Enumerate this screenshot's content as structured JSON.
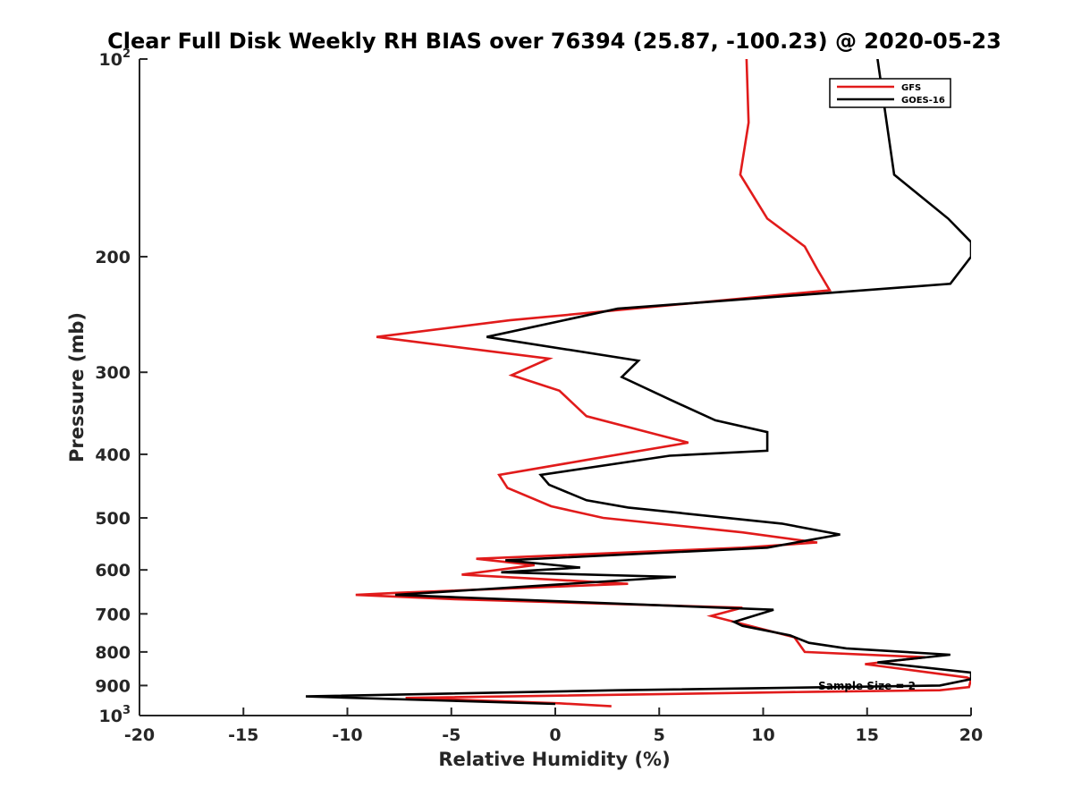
{
  "chart_data": {
    "type": "line",
    "title": "Clear Full Disk Weekly RH BIAS over 76394 (25.87, -100.23) @ 2020-05-23",
    "xlabel": "Relative Humidity (%)",
    "ylabel": "Pressure (mb)",
    "xlim": [
      -20,
      20
    ],
    "ylim": [
      100,
      1000
    ],
    "y_scale": "log",
    "y_reversed": true,
    "grid": false,
    "legend_position": "top-right",
    "x_ticks": [
      "-20",
      "-15",
      "-10",
      "-5",
      "0",
      "5",
      "10",
      "15",
      "20"
    ],
    "y_tick_labels": [
      {
        "value": 100,
        "base": "10",
        "exp": "2"
      },
      {
        "value": 200,
        "label": "200"
      },
      {
        "value": 300,
        "label": "300"
      },
      {
        "value": 400,
        "label": "400"
      },
      {
        "value": 500,
        "label": "500"
      },
      {
        "value": 600,
        "label": "600"
      },
      {
        "value": 700,
        "label": "700"
      },
      {
        "value": 800,
        "label": "800"
      },
      {
        "value": 900,
        "label": "900"
      },
      {
        "value": 1000,
        "base": "10",
        "exp": "3"
      }
    ],
    "annotation": "Sample Size = 2",
    "series": [
      {
        "name": "GFS",
        "color": "#e11b1b",
        "points": [
          [
            9.2,
            100
          ],
          [
            9.3,
            125
          ],
          [
            8.9,
            150
          ],
          [
            10.2,
            175
          ],
          [
            12.0,
            193
          ],
          [
            12.6,
            209
          ],
          [
            13.2,
            225
          ],
          [
            -2.2,
            250
          ],
          [
            -8.6,
            265
          ],
          [
            -0.3,
            286
          ],
          [
            -2.1,
            303
          ],
          [
            0.2,
            320
          ],
          [
            1.5,
            350
          ],
          [
            5.0,
            374
          ],
          [
            6.4,
            384
          ],
          [
            1.5,
            408
          ],
          [
            -2.7,
            430
          ],
          [
            -2.3,
            450
          ],
          [
            -0.2,
            480
          ],
          [
            2.3,
            500
          ],
          [
            9.0,
            526
          ],
          [
            12.6,
            545
          ],
          [
            9.0,
            555
          ],
          [
            -3.8,
            577
          ],
          [
            -1.0,
            590
          ],
          [
            -4.5,
            610
          ],
          [
            3.5,
            630
          ],
          [
            -7.5,
            650
          ],
          [
            -9.6,
            655
          ],
          [
            -4.8,
            665
          ],
          [
            9.0,
            685
          ],
          [
            7.5,
            705
          ],
          [
            11.5,
            760
          ],
          [
            12.0,
            800
          ],
          [
            17.8,
            815
          ],
          [
            14.9,
            835
          ],
          [
            19.8,
            875
          ],
          [
            20.0,
            880
          ],
          [
            19.9,
            905
          ],
          [
            18.5,
            915
          ],
          [
            12.5,
            920
          ],
          [
            -7.2,
            940
          ],
          [
            0.2,
            958
          ],
          [
            2.7,
            968
          ]
        ]
      },
      {
        "name": "GOES-16",
        "color": "#000000",
        "points": [
          [
            15.5,
            100
          ],
          [
            16.3,
            150
          ],
          [
            18.9,
            175
          ],
          [
            20.0,
            190
          ],
          [
            20.0,
            200
          ],
          [
            19.0,
            220
          ],
          [
            3.0,
            240
          ],
          [
            -3.3,
            265
          ],
          [
            4.0,
            288
          ],
          [
            3.2,
            305
          ],
          [
            5.5,
            330
          ],
          [
            7.7,
            355
          ],
          [
            10.2,
            370
          ],
          [
            10.2,
            395
          ],
          [
            5.5,
            402
          ],
          [
            -0.7,
            430
          ],
          [
            -0.3,
            445
          ],
          [
            1.5,
            470
          ],
          [
            3.5,
            482
          ],
          [
            10.9,
            510
          ],
          [
            13.7,
            530
          ],
          [
            10.2,
            555
          ],
          [
            -2.4,
            580
          ],
          [
            1.2,
            595
          ],
          [
            -2.6,
            605
          ],
          [
            5.8,
            615
          ],
          [
            -7.7,
            655
          ],
          [
            10.5,
            690
          ],
          [
            8.6,
            720
          ],
          [
            9.0,
            730
          ],
          [
            11.3,
            755
          ],
          [
            12.2,
            775
          ],
          [
            14.0,
            790
          ],
          [
            19.0,
            808
          ],
          [
            15.5,
            830
          ],
          [
            20.0,
            860
          ],
          [
            20.0,
            880
          ],
          [
            18.5,
            900
          ],
          [
            3.0,
            915
          ],
          [
            -12.0,
            935
          ],
          [
            0.0,
            960
          ]
        ]
      }
    ]
  }
}
